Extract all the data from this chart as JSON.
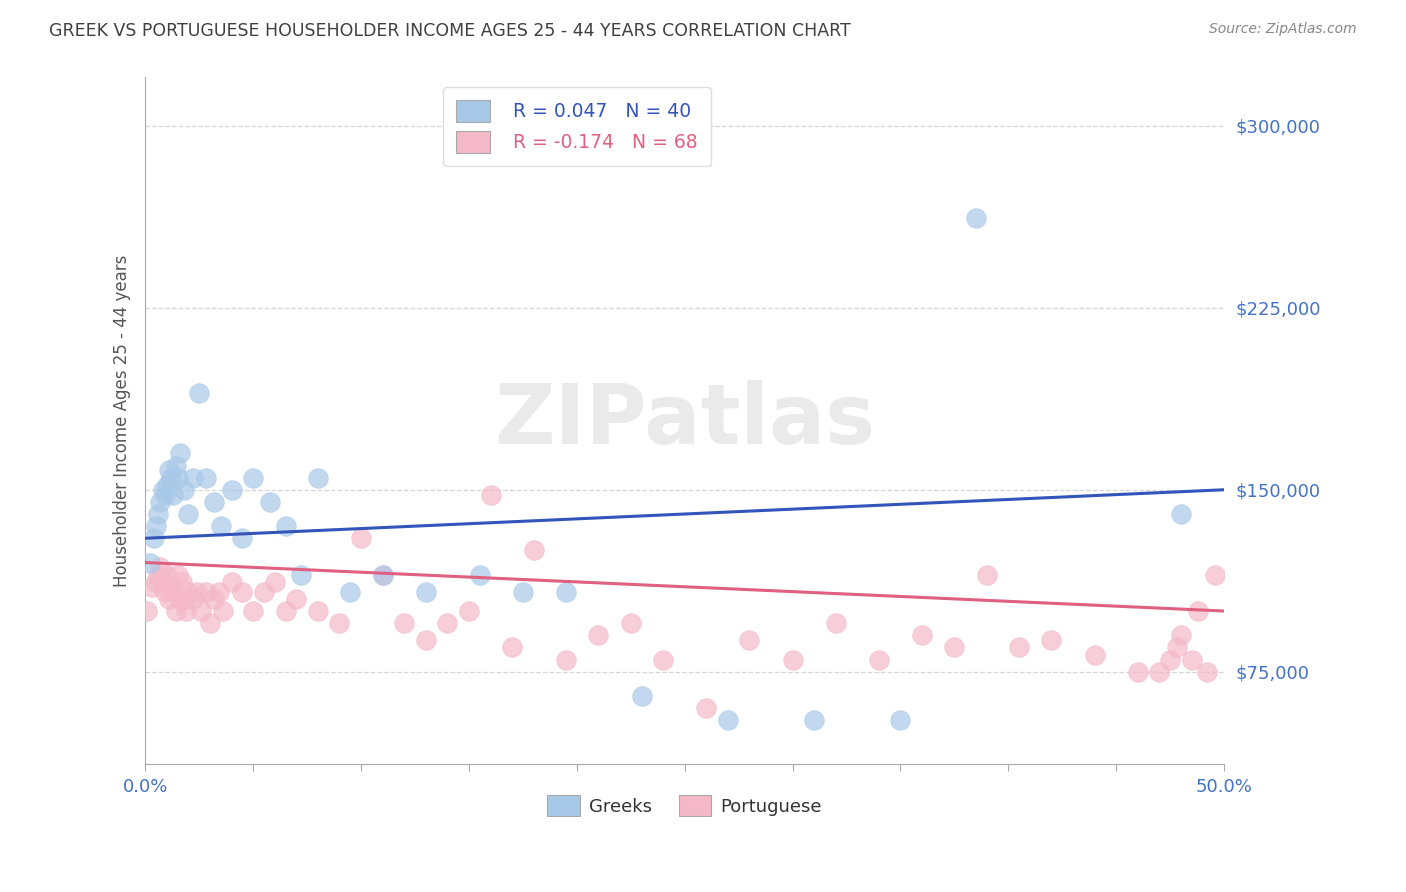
{
  "title": "GREEK VS PORTUGUESE HOUSEHOLDER INCOME AGES 25 - 44 YEARS CORRELATION CHART",
  "source": "Source: ZipAtlas.com",
  "ylabel": "Householder Income Ages 25 - 44 years",
  "xlim": [
    0.0,
    0.5
  ],
  "ylim": [
    37000,
    320000
  ],
  "yticks": [
    75000,
    150000,
    225000,
    300000
  ],
  "ytick_labels": [
    "$75,000",
    "$150,000",
    "$225,000",
    "$300,000"
  ],
  "xticks": [
    0.0,
    0.05,
    0.1,
    0.15,
    0.2,
    0.25,
    0.3,
    0.35,
    0.4,
    0.45,
    0.5
  ],
  "xtick_labels": [
    "0.0%",
    "",
    "",
    "",
    "",
    "",
    "",
    "",
    "",
    "",
    "50.0%"
  ],
  "greek_color": "#a8c8e8",
  "portuguese_color": "#f4b8c8",
  "greek_line_color": "#3355bb",
  "portuguese_line_color": "#e06080",
  "background_color": "#ffffff",
  "grid_color": "#cccccc",
  "title_color": "#404040",
  "axis_label_color": "#4472c4",
  "legend_R_greek": "R = 0.047",
  "legend_N_greek": "N = 40",
  "legend_R_portuguese": "R = -0.174",
  "legend_N_portuguese": "N = 68",
  "greek_x": [
    0.002,
    0.004,
    0.005,
    0.006,
    0.007,
    0.008,
    0.009,
    0.01,
    0.011,
    0.012,
    0.013,
    0.014,
    0.015,
    0.016,
    0.018,
    0.02,
    0.022,
    0.025,
    0.028,
    0.032,
    0.035,
    0.04,
    0.045,
    0.05,
    0.058,
    0.065,
    0.072,
    0.08,
    0.095,
    0.11,
    0.13,
    0.155,
    0.175,
    0.195,
    0.23,
    0.27,
    0.31,
    0.35,
    0.385,
    0.48
  ],
  "greek_y": [
    120000,
    130000,
    135000,
    140000,
    145000,
    150000,
    148000,
    152000,
    158000,
    155000,
    148000,
    160000,
    155000,
    165000,
    150000,
    140000,
    155000,
    190000,
    155000,
    145000,
    135000,
    150000,
    130000,
    155000,
    145000,
    135000,
    115000,
    155000,
    108000,
    115000,
    108000,
    115000,
    108000,
    108000,
    65000,
    55000,
    55000,
    55000,
    262000,
    140000
  ],
  "portuguese_x": [
    0.001,
    0.003,
    0.005,
    0.006,
    0.007,
    0.008,
    0.009,
    0.01,
    0.011,
    0.012,
    0.013,
    0.014,
    0.015,
    0.016,
    0.017,
    0.018,
    0.019,
    0.02,
    0.022,
    0.024,
    0.026,
    0.028,
    0.03,
    0.032,
    0.034,
    0.036,
    0.04,
    0.045,
    0.05,
    0.055,
    0.06,
    0.065,
    0.07,
    0.08,
    0.09,
    0.1,
    0.11,
    0.12,
    0.13,
    0.14,
    0.15,
    0.16,
    0.17,
    0.18,
    0.195,
    0.21,
    0.225,
    0.24,
    0.26,
    0.28,
    0.3,
    0.32,
    0.34,
    0.36,
    0.375,
    0.39,
    0.405,
    0.42,
    0.44,
    0.46,
    0.47,
    0.475,
    0.478,
    0.48,
    0.485,
    0.488,
    0.492,
    0.496
  ],
  "portuguese_y": [
    100000,
    110000,
    112000,
    115000,
    118000,
    112000,
    108000,
    115000,
    105000,
    110000,
    108000,
    100000,
    115000,
    105000,
    112000,
    105000,
    100000,
    108000,
    105000,
    108000,
    100000,
    108000,
    95000,
    105000,
    108000,
    100000,
    112000,
    108000,
    100000,
    108000,
    112000,
    100000,
    105000,
    100000,
    95000,
    130000,
    115000,
    95000,
    88000,
    95000,
    100000,
    148000,
    85000,
    125000,
    80000,
    90000,
    95000,
    80000,
    60000,
    88000,
    80000,
    95000,
    80000,
    90000,
    85000,
    115000,
    85000,
    88000,
    82000,
    75000,
    75000,
    80000,
    85000,
    90000,
    80000,
    100000,
    75000,
    115000
  ]
}
